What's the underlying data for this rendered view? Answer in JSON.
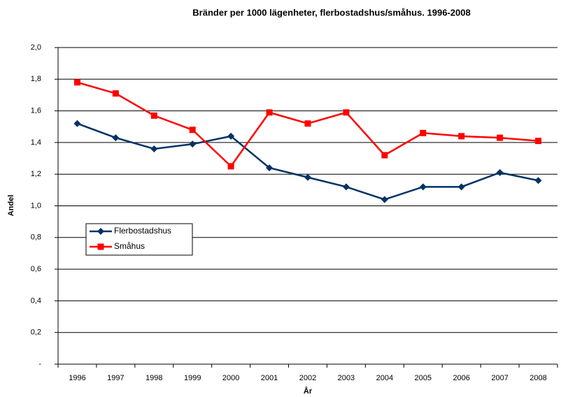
{
  "chart_data": {
    "type": "line",
    "title": "Bränder per 1000 lägenheter, flerbostadshus/småhus. 1996-2008",
    "x_label": "År",
    "y_label": "Andel",
    "categories": [
      "1996",
      "1997",
      "1998",
      "1999",
      "2000",
      "2001",
      "2002",
      "2003",
      "2004",
      "2005",
      "2006",
      "2007",
      "2008"
    ],
    "series": [
      {
        "name": "Flerbostadshus",
        "color": "#003366",
        "marker": "diamond",
        "values": [
          1.52,
          1.43,
          1.36,
          1.39,
          1.44,
          1.24,
          1.18,
          1.12,
          1.04,
          1.12,
          1.12,
          1.21,
          1.16
        ]
      },
      {
        "name": "Småhus",
        "color": "#ff0000",
        "marker": "square",
        "values": [
          1.78,
          1.71,
          1.57,
          1.48,
          1.25,
          1.59,
          1.52,
          1.59,
          1.32,
          1.46,
          1.44,
          1.43,
          1.41
        ]
      }
    ],
    "ylim": [
      0,
      2
    ],
    "yticks": [
      {
        "value": 0,
        "label": "-"
      },
      {
        "value": 0.2,
        "label": "0,2"
      },
      {
        "value": 0.4,
        "label": "0,4"
      },
      {
        "value": 0.6,
        "label": "0,6"
      },
      {
        "value": 0.8,
        "label": "0,8"
      },
      {
        "value": 1,
        "label": "1,0"
      },
      {
        "value": 1.2,
        "label": "1,2"
      },
      {
        "value": 1.4,
        "label": "1,4"
      },
      {
        "value": 1.6,
        "label": "1,6"
      },
      {
        "value": 1.8,
        "label": "1,8"
      },
      {
        "value": 2,
        "label": "2,0"
      }
    ],
    "grid": true,
    "legend": "left"
  }
}
